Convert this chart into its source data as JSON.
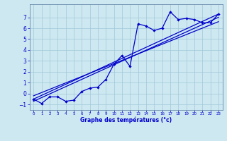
{
  "xlabel": "Graphe des températures (°c)",
  "xlim": [
    -0.5,
    23.5
  ],
  "ylim": [
    -1.5,
    8.2
  ],
  "xticks": [
    0,
    1,
    2,
    3,
    4,
    5,
    6,
    7,
    8,
    9,
    10,
    11,
    12,
    13,
    14,
    15,
    16,
    17,
    18,
    19,
    20,
    21,
    22,
    23
  ],
  "yticks": [
    -1,
    0,
    1,
    2,
    3,
    4,
    5,
    6,
    7
  ],
  "bg_color": "#cde8f0",
  "line_color": "#0000cc",
  "grid_color": "#a0c8d8",
  "scatter_x": [
    0,
    1,
    2,
    3,
    4,
    5,
    6,
    7,
    8,
    9,
    10,
    11,
    12,
    13,
    14,
    15,
    16,
    17,
    18,
    19,
    20,
    21,
    22,
    23
  ],
  "scatter_y": [
    -0.5,
    -0.9,
    -0.3,
    -0.3,
    -0.7,
    -0.6,
    0.2,
    0.5,
    0.6,
    1.3,
    2.7,
    3.5,
    2.5,
    6.4,
    6.2,
    5.8,
    6.0,
    7.5,
    6.8,
    6.9,
    6.8,
    6.5,
    6.5,
    7.3
  ],
  "line1_x": [
    0,
    23
  ],
  "line1_y": [
    -0.5,
    7.3
  ],
  "line2_x": [
    0,
    23
  ],
  "line2_y": [
    -0.2,
    6.6
  ],
  "line3_x": [
    0,
    23
  ],
  "line3_y": [
    -0.7,
    7.0
  ],
  "xtick_fontsize": 4.0,
  "ytick_fontsize": 5.5,
  "xlabel_fontsize": 5.5
}
